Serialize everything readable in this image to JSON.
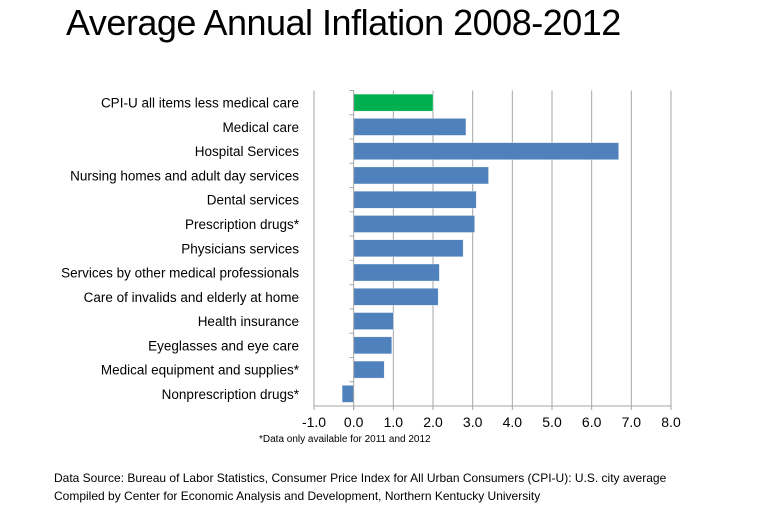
{
  "chart_data": {
    "type": "bar",
    "orientation": "horizontal",
    "title": "Average Annual Inflation 2008-2012",
    "xlabel": "",
    "ylabel": "",
    "xlim": [
      -1.0,
      8.0
    ],
    "xticks": [
      "-1.0",
      "0.0",
      "1.0",
      "2.0",
      "3.0",
      "4.0",
      "5.0",
      "6.0",
      "7.0",
      "8.0"
    ],
    "grid": "vertical",
    "legend": "none",
    "categories": [
      "CPI-U all items less medical care",
      "Medical care",
      "Hospital Services",
      "Nursing homes and adult day services",
      "Dental services",
      "Prescription drugs*",
      "Physicians services",
      "Services by other medical professionals",
      "Care of invalids and elderly at home",
      "Health insurance",
      "Eyeglasses and eye care",
      "Medical equipment and supplies*",
      "Nonprescription drugs*"
    ],
    "values": [
      2.0,
      2.83,
      6.68,
      3.4,
      3.09,
      3.05,
      2.76,
      2.16,
      2.13,
      1.0,
      0.96,
      0.77,
      -0.29
    ],
    "colors": [
      "#00B050",
      "#4F81BD",
      "#4F81BD",
      "#4F81BD",
      "#4F81BD",
      "#4F81BD",
      "#4F81BD",
      "#4F81BD",
      "#4F81BD",
      "#4F81BD",
      "#4F81BD",
      "#4F81BD",
      "#4F81BD"
    ],
    "footnote": "*Data only available for 2011 and 2012"
  },
  "source": {
    "line1": "Data Source:  Bureau of Labor Statistics, Consumer Price Index for All Urban Consumers (CPI-U): U.S. city average",
    "line2": "Compiled by Center for Economic Analysis and Development, Northern Kentucky University"
  },
  "colors": {
    "highlight": "#00B050",
    "bar": "#4F81BD",
    "grid": "#A6A6A6"
  }
}
